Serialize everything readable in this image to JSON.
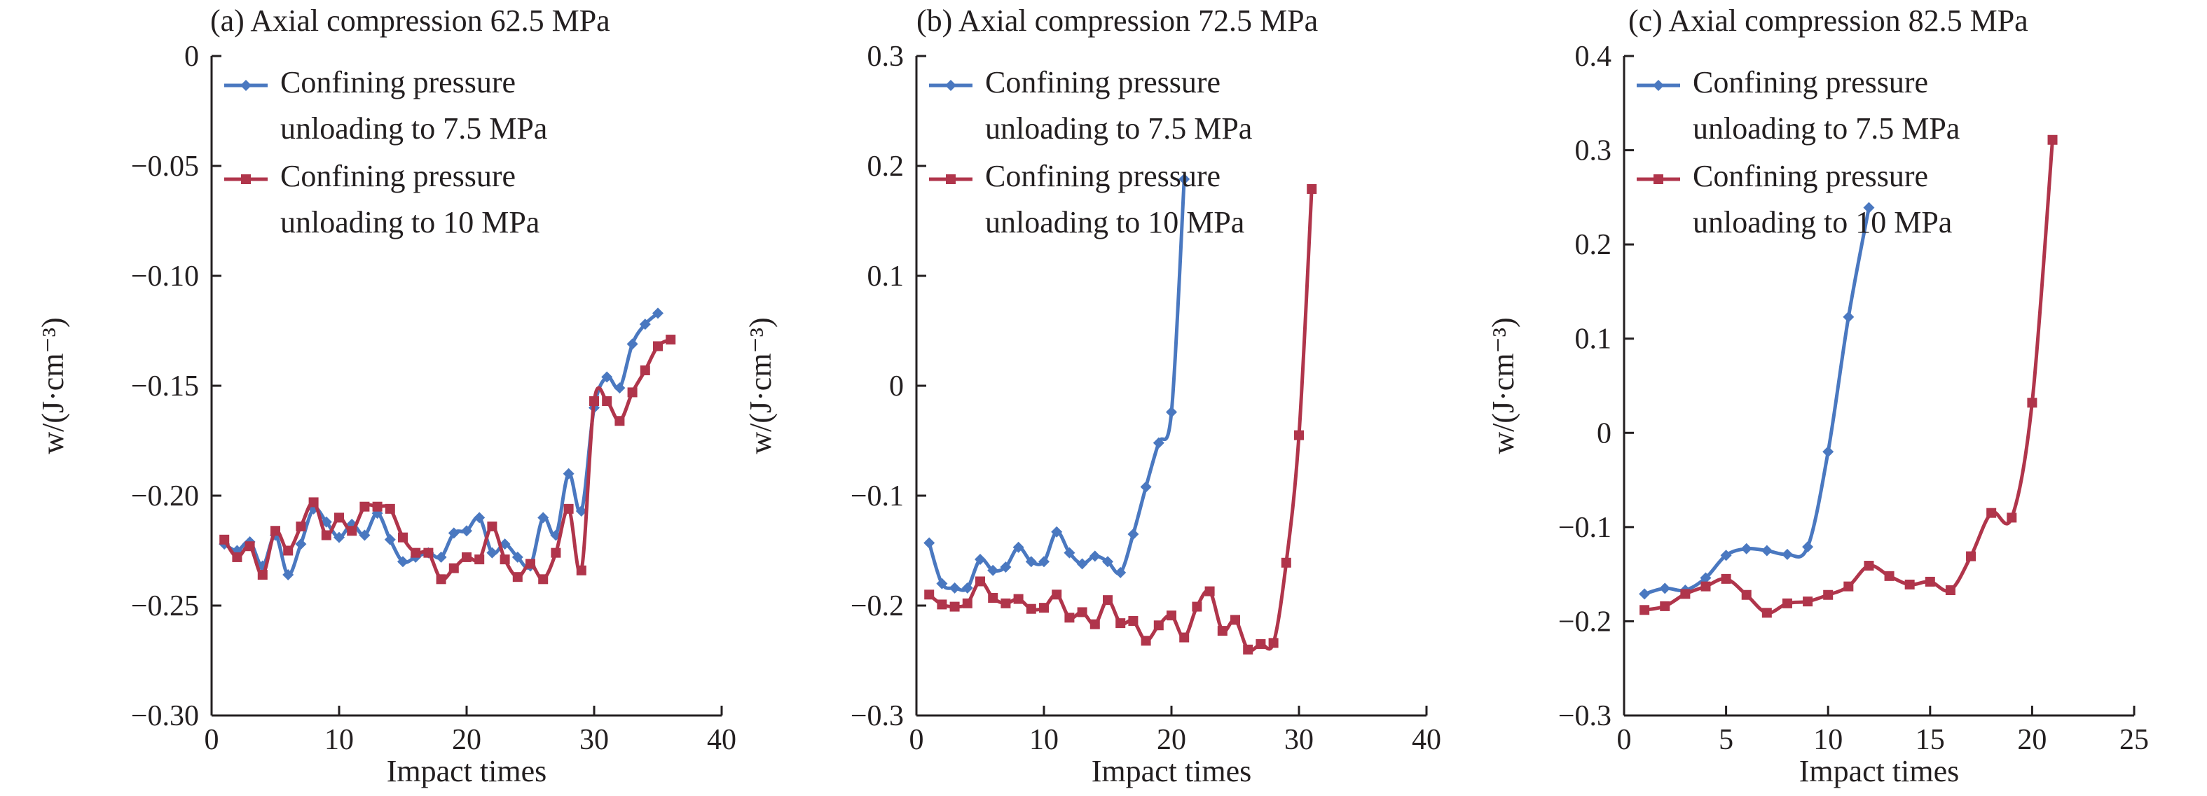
{
  "colors": {
    "series1": "#4a78c0",
    "series2": "#b0354b",
    "axis": "#231f20",
    "background": "#ffffff"
  },
  "legend": {
    "series1_line1": "Confining pressure",
    "series1_line2": "unloading to 7.5 MPa",
    "series2_line1": "Confining pressure",
    "series2_line2": "unloading to 10 MPa"
  },
  "chart_data": [
    {
      "type": "line",
      "title": "(a) Axial compression 62.5 MPa",
      "xlabel": "Impact times",
      "ylabel": "w/(J·cm⁻³)",
      "xlim": [
        0,
        40
      ],
      "ylim": [
        -0.3,
        0
      ],
      "xticks": [
        0,
        10,
        20,
        30,
        40
      ],
      "xtick_labels": [
        "0",
        "10",
        "20",
        "30",
        "40"
      ],
      "yticks": [
        -0.3,
        -0.25,
        -0.2,
        -0.15,
        -0.1,
        -0.05,
        0
      ],
      "ytick_labels": [
        "−0.30",
        "−0.25",
        "−0.20",
        "−0.15",
        "−0.10",
        "−0.05",
        "0"
      ],
      "legend_position": "top-left",
      "series": [
        {
          "name": "Confining pressure unloading to 7.5 MPa",
          "x": [
            1,
            2,
            3,
            4,
            5,
            6,
            7,
            8,
            9,
            10,
            11,
            12,
            13,
            14,
            15,
            16,
            17,
            18,
            19,
            20,
            21,
            22,
            23,
            24,
            25,
            26,
            27,
            28,
            29,
            30,
            31,
            32,
            33,
            34,
            35
          ],
          "y": [
            -0.222,
            -0.225,
            -0.221,
            -0.232,
            -0.218,
            -0.236,
            -0.222,
            -0.206,
            -0.212,
            -0.219,
            -0.213,
            -0.218,
            -0.208,
            -0.22,
            -0.23,
            -0.228,
            -0.226,
            -0.228,
            -0.217,
            -0.216,
            -0.21,
            -0.226,
            -0.222,
            -0.228,
            -0.232,
            -0.21,
            -0.218,
            -0.19,
            -0.207,
            -0.16,
            -0.146,
            -0.151,
            -0.131,
            -0.122,
            -0.117
          ]
        },
        {
          "name": "Confining pressure unloading to 10 MPa",
          "x": [
            1,
            2,
            3,
            4,
            5,
            6,
            7,
            8,
            9,
            10,
            11,
            12,
            13,
            14,
            15,
            16,
            17,
            18,
            19,
            20,
            21,
            22,
            23,
            24,
            25,
            26,
            27,
            28,
            29,
            30,
            31,
            32,
            33,
            34,
            35,
            36
          ],
          "y": [
            -0.22,
            -0.228,
            -0.223,
            -0.236,
            -0.216,
            -0.225,
            -0.214,
            -0.203,
            -0.218,
            -0.21,
            -0.216,
            -0.205,
            -0.205,
            -0.206,
            -0.219,
            -0.226,
            -0.226,
            -0.238,
            -0.233,
            -0.228,
            -0.229,
            -0.214,
            -0.229,
            -0.237,
            -0.231,
            -0.238,
            -0.226,
            -0.206,
            -0.234,
            -0.157,
            -0.157,
            -0.166,
            -0.153,
            -0.143,
            -0.132,
            -0.129
          ]
        }
      ]
    },
    {
      "type": "line",
      "title": "(b) Axial compression 72.5 MPa",
      "xlabel": "Impact times",
      "ylabel": "w/(J·cm⁻³)",
      "xlim": [
        0,
        40
      ],
      "ylim": [
        -0.3,
        0.3
      ],
      "xticks": [
        0,
        10,
        20,
        30,
        40
      ],
      "xtick_labels": [
        "0",
        "10",
        "20",
        "30",
        "40"
      ],
      "yticks": [
        -0.3,
        -0.2,
        -0.1,
        0,
        0.1,
        0.2,
        0.3
      ],
      "ytick_labels": [
        "−0.3",
        "−0.2",
        "−0.1",
        "0",
        "0.1",
        "0.2",
        "0.3"
      ],
      "legend_position": "top-left",
      "series": [
        {
          "name": "Confining pressure unloading to 7.5 MPa",
          "x": [
            1,
            2,
            3,
            4,
            5,
            6,
            7,
            8,
            9,
            10,
            11,
            12,
            13,
            14,
            15,
            16,
            17,
            18,
            19,
            20,
            21
          ],
          "y": [
            -0.143,
            -0.18,
            -0.184,
            -0.184,
            -0.158,
            -0.168,
            -0.165,
            -0.147,
            -0.16,
            -0.16,
            -0.133,
            -0.152,
            -0.162,
            -0.155,
            -0.16,
            -0.17,
            -0.135,
            -0.092,
            -0.052,
            -0.024,
            0.188
          ]
        },
        {
          "name": "Confining pressure unloading to 10 MPa",
          "x": [
            1,
            2,
            3,
            4,
            5,
            6,
            7,
            8,
            9,
            10,
            11,
            12,
            13,
            14,
            15,
            16,
            17,
            18,
            19,
            20,
            21,
            22,
            23,
            24,
            25,
            26,
            27,
            28,
            29,
            30,
            31
          ],
          "y": [
            -0.19,
            -0.199,
            -0.201,
            -0.198,
            -0.178,
            -0.193,
            -0.198,
            -0.194,
            -0.203,
            -0.202,
            -0.19,
            -0.211,
            -0.206,
            -0.217,
            -0.195,
            -0.216,
            -0.214,
            -0.232,
            -0.218,
            -0.209,
            -0.229,
            -0.201,
            -0.187,
            -0.223,
            -0.213,
            -0.24,
            -0.235,
            -0.234,
            -0.161,
            -0.045,
            0.179
          ]
        }
      ]
    },
    {
      "type": "line",
      "title": "(c) Axial compression 82.5 MPa",
      "xlabel": "Impact times",
      "ylabel": "w/(J·cm⁻³)",
      "xlim": [
        0,
        25
      ],
      "ylim": [
        -0.3,
        0.4
      ],
      "xticks": [
        0,
        5,
        10,
        15,
        20,
        25
      ],
      "xtick_labels": [
        "0",
        "5",
        "10",
        "15",
        "20",
        "25"
      ],
      "yticks": [
        -0.3,
        -0.2,
        -0.1,
        0,
        0.1,
        0.2,
        0.3,
        0.4
      ],
      "ytick_labels": [
        "−0.3",
        "−0.2",
        "−0.1",
        "0",
        "0.1",
        "0.2",
        "0.3",
        "0.4"
      ],
      "legend_position": "top-left",
      "series": [
        {
          "name": "Confining pressure unloading to 7.5 MPa",
          "x": [
            1,
            2,
            3,
            4,
            5,
            6,
            7,
            8,
            9,
            10,
            11,
            12
          ],
          "y": [
            -0.171,
            -0.165,
            -0.167,
            -0.154,
            -0.13,
            -0.123,
            -0.125,
            -0.129,
            -0.121,
            -0.02,
            0.123,
            0.239
          ]
        },
        {
          "name": "Confining pressure unloading to 10 MPa",
          "x": [
            1,
            2,
            3,
            4,
            5,
            6,
            7,
            8,
            9,
            10,
            11,
            12,
            13,
            14,
            15,
            16,
            17,
            18,
            19,
            20,
            21
          ],
          "y": [
            -0.188,
            -0.184,
            -0.171,
            -0.163,
            -0.155,
            -0.172,
            -0.191,
            -0.181,
            -0.179,
            -0.172,
            -0.163,
            -0.141,
            -0.152,
            -0.161,
            -0.158,
            -0.167,
            -0.131,
            -0.085,
            -0.09,
            0.032,
            0.311
          ]
        }
      ]
    }
  ]
}
